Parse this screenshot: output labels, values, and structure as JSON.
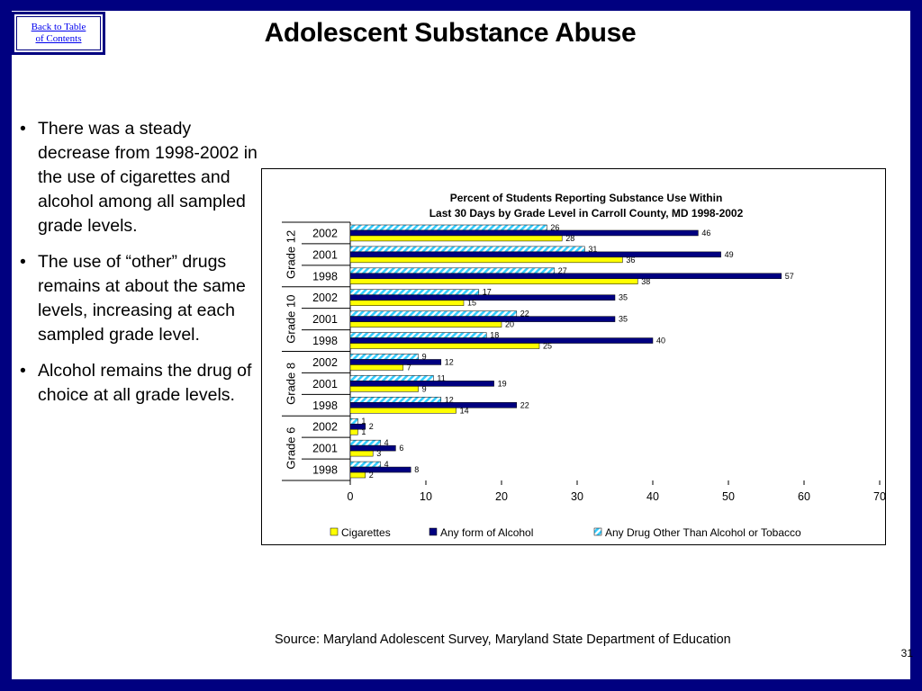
{
  "slide": {
    "back_link": {
      "line1": "Back to Table",
      "line2": "of Contents"
    },
    "title": "Adolescent Substance Abuse",
    "bullets": [
      "There was a steady decrease from 1998-2002 in the use of cigarettes and alcohol among all sampled grade levels.",
      "The use of “other” drugs remains at about the same levels, increasing at each sampled grade level.",
      "Alcohol remains the drug of choice at all grade levels."
    ],
    "source": "Source: Maryland Adolescent Survey, Maryland State Department of Education",
    "page_number": "31"
  },
  "chart_data": {
    "type": "bar",
    "orientation": "horizontal",
    "title_line1": "Percent of Students Reporting Substance Use Within",
    "title_line2": "Last 30 Days by Grade Level in Carroll County, MD 1998-2002",
    "groups": [
      {
        "label": "Grade 12",
        "categories": [
          "2002",
          "2001",
          "1998"
        ]
      },
      {
        "label": "Grade 10",
        "categories": [
          "2002",
          "2001",
          "1998"
        ]
      },
      {
        "label": "Grade 8",
        "categories": [
          "2002",
          "2001",
          "1998"
        ]
      },
      {
        "label": "Grade 6",
        "categories": [
          "2002",
          "2001",
          "1998"
        ]
      }
    ],
    "series": [
      {
        "name": "Cigarettes",
        "color": "#ffff00",
        "pattern": "solid",
        "values": [
          28,
          36,
          38,
          15,
          20,
          25,
          7,
          9,
          14,
          1,
          3,
          2
        ]
      },
      {
        "name": "Any form of Alcohol",
        "color": "#000080",
        "pattern": "solid",
        "values": [
          46,
          49,
          57,
          35,
          35,
          40,
          12,
          19,
          22,
          2,
          6,
          8
        ]
      },
      {
        "name": "Any Drug Other Than Alcohol or Tobacco",
        "color": "#33ccff",
        "pattern": "diagonal-stripes",
        "values": [
          26,
          31,
          27,
          17,
          22,
          18,
          9,
          11,
          12,
          1,
          4,
          4
        ]
      }
    ],
    "x_ticks": [
      "0",
      "10",
      "20",
      "30",
      "40",
      "50",
      "60",
      "70"
    ],
    "xlim": [
      0,
      70
    ],
    "legend_position": "bottom",
    "grid": false
  }
}
